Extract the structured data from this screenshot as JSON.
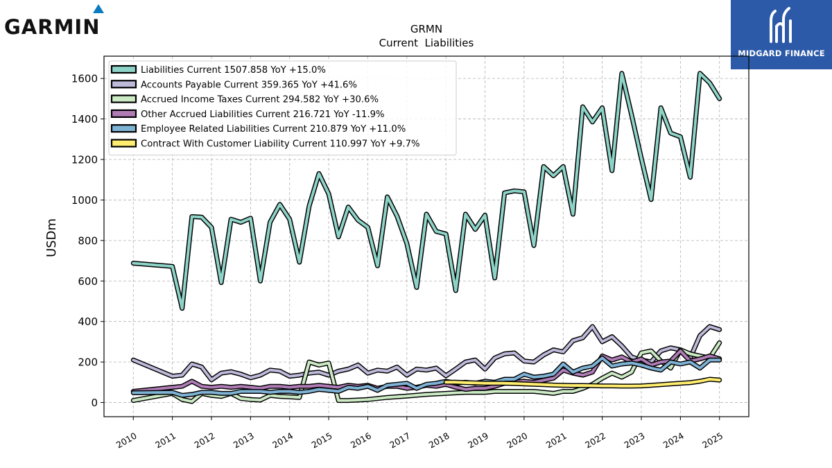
{
  "logos": {
    "left_brand": "GARMIN",
    "right_brand": "MIDGARD FINANCE"
  },
  "colors": {
    "liabilities_current": "#8dd3c7",
    "accounts_payable": "#bebada",
    "accrued_income_taxes": "#ccebc5",
    "other_accrued": "#b07cb6",
    "employee_related": "#7fb3d5",
    "contract_liability": "#ffed6f",
    "midgard_blue": "#2c5aa8",
    "garmin_blue": "#0a7bc1"
  },
  "chart_data": {
    "type": "line",
    "title": "GRMN",
    "subtitle": "Current  Liabilities",
    "xlabel": "",
    "ylabel": "USDm",
    "xlim": [
      2009.25,
      2025.75
    ],
    "ylim": [
      -70,
      1710
    ],
    "xticks": [
      2010,
      2011,
      2012,
      2013,
      2014,
      2015,
      2016,
      2017,
      2018,
      2019,
      2020,
      2021,
      2022,
      2023,
      2024,
      2025
    ],
    "xtick_labels": [
      "2010",
      "2011",
      "2012",
      "2013",
      "2014",
      "2015",
      "2016",
      "2017",
      "2018",
      "2019",
      "2020",
      "2021",
      "2022",
      "2023",
      "2024",
      "2025"
    ],
    "yticks": [
      0,
      200,
      400,
      600,
      800,
      1000,
      1200,
      1400,
      1600
    ],
    "ytick_labels": [
      "0",
      "200",
      "400",
      "600",
      "800",
      "1000",
      "1200",
      "1400",
      "1600"
    ],
    "grid": true,
    "legend_position": "top-left",
    "series": [
      {
        "name": "Liabilities Current",
        "legend": "Liabilities Current  1507.858 YoY +15.0%",
        "color": "#8dd3c7",
        "x": [
          2010.0,
          2011.0,
          2011.25,
          2011.5,
          2011.75,
          2012.0,
          2012.25,
          2012.5,
          2012.75,
          2013.0,
          2013.25,
          2013.5,
          2013.75,
          2014.0,
          2014.25,
          2014.5,
          2014.75,
          2015.0,
          2015.25,
          2015.5,
          2015.75,
          2016.0,
          2016.25,
          2016.5,
          2016.75,
          2017.0,
          2017.25,
          2017.5,
          2017.75,
          2018.0,
          2018.25,
          2018.5,
          2018.75,
          2019.0,
          2019.25,
          2019.5,
          2019.75,
          2020.0,
          2020.25,
          2020.5,
          2020.75,
          2021.0,
          2021.25,
          2021.5,
          2021.75,
          2022.0,
          2022.25,
          2022.5,
          2022.75,
          2023.0,
          2023.25,
          2023.5,
          2023.75,
          2024.0,
          2024.25,
          2024.5,
          2024.75,
          2025.0
        ],
        "y": [
          688,
          672,
          465,
          918,
          915,
          865,
          592,
          905,
          890,
          910,
          600,
          890,
          978,
          905,
          693,
          970,
          1130,
          1030,
          818,
          965,
          900,
          865,
          675,
          1015,
          920,
          785,
          568,
          930,
          845,
          832,
          553,
          930,
          855,
          925,
          615,
          1035,
          1045,
          1040,
          775,
          1165,
          1120,
          1165,
          930,
          1460,
          1385,
          1455,
          1145,
          1625,
          1420,
          1205,
          1002,
          1455,
          1330,
          1312,
          1112,
          1625,
          1578,
          1500
        ]
      },
      {
        "name": "Accounts Payable Current",
        "legend": "Accounts Payable Current  359.365 YoY +41.6%",
        "color": "#bebada",
        "x": [
          2010.0,
          2011.0,
          2011.25,
          2011.5,
          2011.75,
          2012.0,
          2012.25,
          2012.5,
          2012.75,
          2013.0,
          2013.25,
          2013.5,
          2013.75,
          2014.0,
          2014.25,
          2014.5,
          2014.75,
          2015.0,
          2015.25,
          2015.5,
          2015.75,
          2016.0,
          2016.25,
          2016.5,
          2016.75,
          2017.0,
          2017.25,
          2017.5,
          2017.75,
          2018.0,
          2018.25,
          2018.5,
          2018.75,
          2019.0,
          2019.25,
          2019.5,
          2019.75,
          2020.0,
          2020.25,
          2020.5,
          2020.75,
          2021.0,
          2021.25,
          2021.5,
          2021.75,
          2022.0,
          2022.25,
          2022.5,
          2022.75,
          2023.0,
          2023.25,
          2023.5,
          2023.75,
          2024.0,
          2024.25,
          2024.5,
          2024.75,
          2025.0
        ],
        "y": [
          210,
          130,
          135,
          190,
          175,
          112,
          145,
          152,
          140,
          122,
          135,
          160,
          155,
          130,
          135,
          145,
          150,
          135,
          155,
          165,
          185,
          145,
          160,
          155,
          175,
          135,
          165,
          160,
          170,
          132,
          165,
          200,
          210,
          165,
          220,
          240,
          245,
          205,
          200,
          235,
          260,
          250,
          305,
          320,
          375,
          300,
          325,
          280,
          225,
          210,
          200,
          255,
          270,
          260,
          220,
          330,
          375,
          360
        ]
      },
      {
        "name": "Accrued Income Taxes Current",
        "legend": "Accrued Income Taxes Current  294.582 YoY +30.6%",
        "color": "#ccebc5",
        "x": [
          2010.0,
          2011.0,
          2011.25,
          2011.5,
          2011.75,
          2012.0,
          2012.25,
          2012.5,
          2012.75,
          2013.0,
          2013.25,
          2013.5,
          2013.75,
          2014.0,
          2014.25,
          2014.5,
          2014.75,
          2015.0,
          2015.25,
          2015.5,
          2016.0,
          2016.5,
          2017.0,
          2017.5,
          2018.0,
          2018.5,
          2019.0,
          2019.25,
          2019.5,
          2019.75,
          2020.0,
          2020.25,
          2020.5,
          2020.75,
          2021.0,
          2021.25,
          2021.5,
          2021.75,
          2022.0,
          2022.25,
          2022.5,
          2022.75,
          2023.0,
          2023.25,
          2023.5,
          2023.75,
          2024.0,
          2024.25,
          2024.5,
          2024.75,
          2025.0
        ],
        "y": [
          10,
          45,
          15,
          5,
          45,
          35,
          30,
          45,
          20,
          15,
          12,
          35,
          30,
          28,
          25,
          200,
          185,
          195,
          10,
          10,
          15,
          25,
          32,
          40,
          45,
          50,
          50,
          55,
          55,
          55,
          55,
          55,
          50,
          45,
          55,
          55,
          70,
          90,
          120,
          145,
          125,
          150,
          245,
          255,
          205,
          170,
          260,
          240,
          230,
          220,
          295
        ]
      },
      {
        "name": "Other Accrued Liabilities Current",
        "legend": "Other Accrued Liabilities Current  216.721 YoY -11.9%",
        "color": "#b07cb6",
        "x": [
          2010.0,
          2011.0,
          2011.25,
          2011.5,
          2011.75,
          2012.0,
          2012.25,
          2012.5,
          2012.75,
          2013.0,
          2013.25,
          2013.5,
          2013.75,
          2014.0,
          2014.25,
          2014.5,
          2014.75,
          2015.0,
          2015.25,
          2015.5,
          2015.75,
          2016.0,
          2016.25,
          2016.5,
          2016.75,
          2017.0,
          2017.25,
          2017.5,
          2017.75,
          2018.0,
          2018.25,
          2018.5,
          2018.75,
          2019.0,
          2019.25,
          2019.5,
          2019.75,
          2020.0,
          2020.25,
          2020.5,
          2020.75,
          2021.0,
          2021.25,
          2021.5,
          2021.75,
          2022.0,
          2022.25,
          2022.5,
          2022.75,
          2023.0,
          2023.25,
          2023.5,
          2023.75,
          2024.0,
          2024.25,
          2024.5,
          2024.75,
          2025.0
        ],
        "y": [
          55,
          75,
          80,
          105,
          80,
          75,
          80,
          75,
          80,
          75,
          70,
          80,
          80,
          75,
          80,
          80,
          85,
          80,
          75,
          85,
          80,
          85,
          70,
          80,
          80,
          70,
          75,
          85,
          80,
          90,
          75,
          65,
          70,
          70,
          80,
          95,
          100,
          105,
          100,
          110,
          120,
          160,
          145,
          135,
          150,
          230,
          210,
          225,
          200,
          215,
          185,
          200,
          205,
          255,
          205,
          215,
          230,
          216
        ]
      },
      {
        "name": "Employee Related Liabilities Current",
        "legend": "Employee Related Liabilities Current  210.879 YoY +11.0%",
        "color": "#7fb3d5",
        "x": [
          2010.0,
          2011.0,
          2011.25,
          2011.5,
          2011.75,
          2012.0,
          2012.25,
          2012.5,
          2012.75,
          2013.0,
          2013.25,
          2013.5,
          2013.75,
          2014.0,
          2014.25,
          2014.5,
          2014.75,
          2015.0,
          2015.25,
          2015.5,
          2015.75,
          2016.0,
          2016.25,
          2016.5,
          2016.75,
          2017.0,
          2017.25,
          2017.5,
          2017.75,
          2018.0,
          2018.25,
          2018.5,
          2018.75,
          2019.0,
          2019.25,
          2019.5,
          2019.75,
          2020.0,
          2020.25,
          2020.5,
          2020.75,
          2021.0,
          2021.25,
          2021.5,
          2021.75,
          2022.0,
          2022.25,
          2022.5,
          2022.75,
          2023.0,
          2023.25,
          2023.5,
          2023.75,
          2024.0,
          2024.25,
          2024.5,
          2024.75,
          2025.0
        ],
        "y": [
          48,
          50,
          35,
          40,
          50,
          50,
          45,
          45,
          55,
          55,
          55,
          50,
          55,
          55,
          50,
          55,
          65,
          60,
          55,
          75,
          70,
          80,
          60,
          85,
          90,
          95,
          70,
          90,
          95,
          105,
          95,
          100,
          95,
          105,
          100,
          115,
          115,
          140,
          125,
          130,
          140,
          190,
          150,
          170,
          180,
          220,
          180,
          190,
          195,
          185,
          170,
          160,
          200,
          190,
          200,
          170,
          210,
          210
        ]
      },
      {
        "name": "Contract With Customer Liability Current",
        "legend": "Contract With Customer Liability Current  110.997 YoY +9.7%",
        "color": "#ffed6f",
        "x": [
          2018.0,
          2018.25,
          2018.5,
          2018.75,
          2019.0,
          2019.25,
          2019.5,
          2019.75,
          2020.0,
          2020.25,
          2020.5,
          2020.75,
          2021.0,
          2021.25,
          2021.5,
          2021.75,
          2022.0,
          2022.25,
          2022.5,
          2022.75,
          2023.0,
          2023.25,
          2023.5,
          2023.75,
          2024.0,
          2024.25,
          2024.5,
          2024.75,
          2025.0
        ],
        "y": [
          100,
          100,
          98,
          97,
          95,
          95,
          95,
          94,
          92,
          90,
          88,
          86,
          85,
          84,
          84,
          83,
          82,
          82,
          81,
          81,
          82,
          85,
          88,
          92,
          95,
          98,
          105,
          115,
          111
        ]
      }
    ]
  }
}
